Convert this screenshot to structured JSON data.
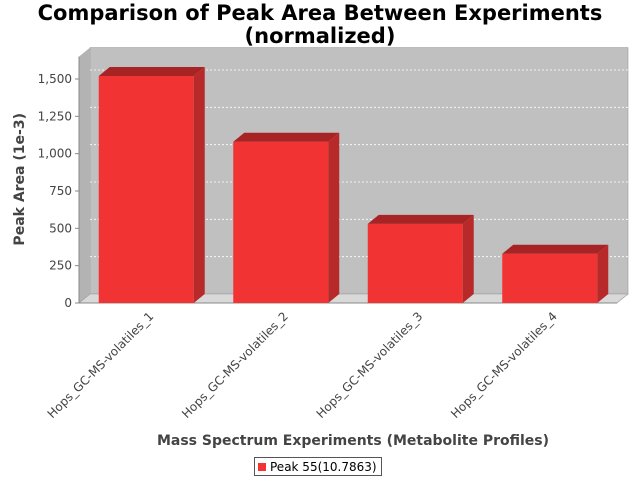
{
  "chart_data": {
    "type": "bar",
    "title": "Comparison of Peak Area Between Experiments\n(normalized)",
    "xlabel": "Mass Spectrum Experiments (Metabolite Profiles)",
    "ylabel": "Peak Area (1e-3)",
    "categories": [
      "Hops_GC-MS-volatiles_1",
      "Hops_GC-MS-volatiles_2",
      "Hops_GC-MS-volatiles_3",
      "Hops_GC-MS-volatiles_4"
    ],
    "series": [
      {
        "name": "Peak 55(10.7863)",
        "values": [
          1520,
          1080,
          530,
          330
        ],
        "color": "#f23333"
      }
    ],
    "ylim": [
      0,
      1650
    ],
    "yticks": [
      0,
      250,
      500,
      750,
      1000,
      1250,
      1500
    ],
    "ytick_labels": [
      "0",
      "250",
      "500",
      "750",
      "1,000",
      "1,250",
      "1,500"
    ],
    "grid": true,
    "legend_position": "bottom",
    "style": "3d",
    "plot_background": "#c0c0c0",
    "bar_top_color": "#a82424",
    "bar_side_color": "#b82a2a"
  }
}
